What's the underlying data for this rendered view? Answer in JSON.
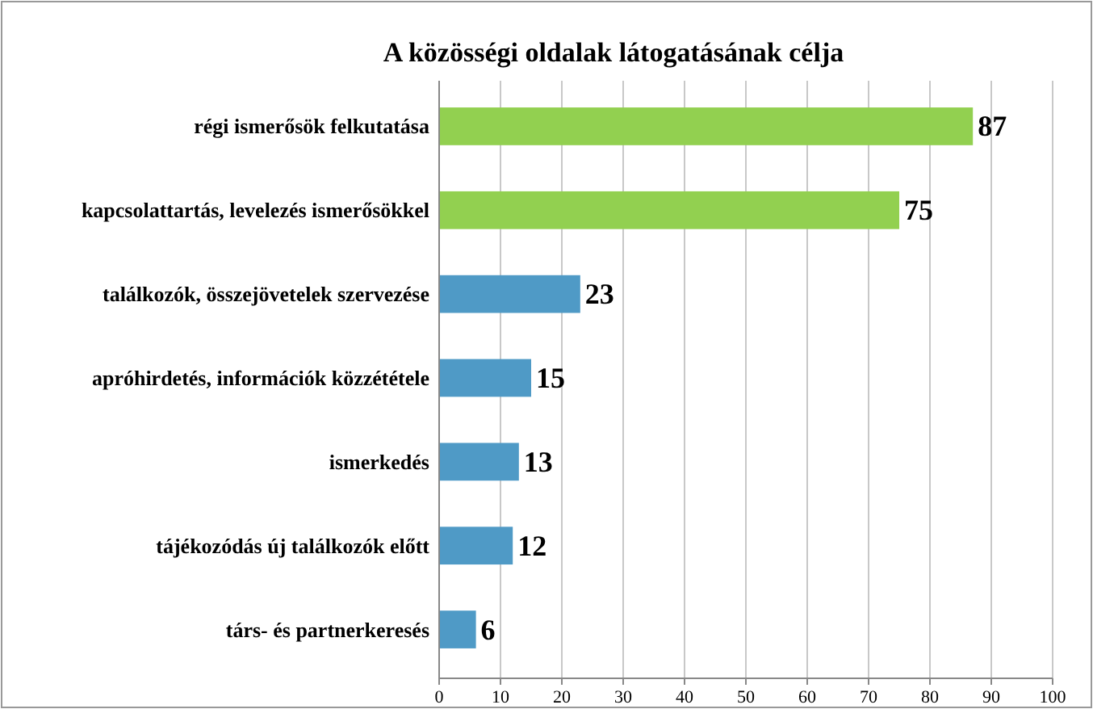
{
  "chart_data": {
    "type": "bar",
    "orientation": "horizontal",
    "title": "A közösségi oldalak látogatásának célja",
    "categories": [
      "régi ismerősök felkutatása",
      "kapcsolattartás, levelezés ismerősökkel",
      "találkozók, összejövetelek szervezése",
      "apróhirdetés, információk közzététele",
      "ismerkedés",
      "tájékozódás új találkozók előtt",
      "társ- és partnerkeresés"
    ],
    "values": [
      87,
      75,
      23,
      15,
      13,
      12,
      6
    ],
    "colors": [
      "#92d050",
      "#92d050",
      "#4f9ac6",
      "#4f9ac6",
      "#4f9ac6",
      "#4f9ac6",
      "#4f9ac6"
    ],
    "xlim": [
      0,
      100
    ],
    "xticks": [
      0,
      10,
      20,
      30,
      40,
      50,
      60,
      70,
      80,
      90,
      100
    ],
    "grid": "x",
    "data_labels": true
  }
}
